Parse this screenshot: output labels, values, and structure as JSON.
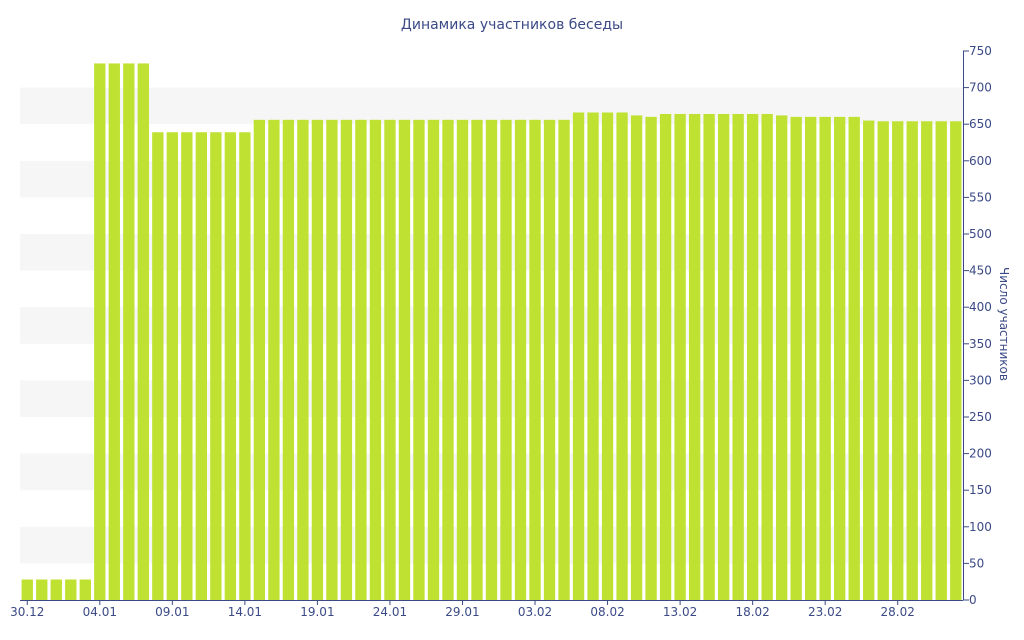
{
  "chart_data": {
    "type": "bar",
    "title": "Динамика участников беседы",
    "ylabel": "Число участников",
    "xlabel": "",
    "ylim": [
      0,
      750
    ],
    "yticks": [
      0,
      50,
      100,
      150,
      200,
      250,
      300,
      350,
      400,
      450,
      500,
      550,
      600,
      650,
      700,
      750
    ],
    "xtick_labels": [
      "30.12",
      "04.01",
      "09.01",
      "14.01",
      "19.01",
      "24.01",
      "29.01",
      "03.02",
      "08.02",
      "13.02",
      "18.02",
      "23.02",
      "28.02"
    ],
    "xtick_every": 5,
    "grid": "alternating horizontal bands",
    "colors": {
      "bar": "#bfe131",
      "text": "#3b4a86",
      "axis": "#3b4a86",
      "band": "#f6f6f6"
    },
    "categories": [
      "30.12",
      "31.12",
      "01.01",
      "02.01",
      "03.01",
      "04.01",
      "05.01",
      "06.01",
      "07.01",
      "08.01",
      "09.01",
      "10.01",
      "11.01",
      "12.01",
      "13.01",
      "14.01",
      "15.01",
      "16.01",
      "17.01",
      "18.01",
      "19.01",
      "20.01",
      "21.01",
      "22.01",
      "23.01",
      "24.01",
      "25.01",
      "26.01",
      "27.01",
      "28.01",
      "29.01",
      "30.01",
      "31.01",
      "01.02",
      "02.02",
      "03.02",
      "04.02",
      "05.02",
      "06.02",
      "07.02",
      "08.02",
      "09.02",
      "10.02",
      "11.02",
      "12.02",
      "13.02",
      "14.02",
      "15.02",
      "16.02",
      "17.02",
      "18.02",
      "19.02",
      "20.02",
      "21.02",
      "22.02",
      "23.02",
      "24.02",
      "25.02",
      "26.02",
      "27.02",
      "28.02",
      "01.03",
      "02.03",
      "03.03",
      "04.03"
    ],
    "values": [
      28,
      28,
      28,
      28,
      28,
      733,
      733,
      733,
      733,
      639,
      639,
      639,
      639,
      639,
      639,
      639,
      656,
      656,
      656,
      656,
      656,
      656,
      656,
      656,
      656,
      656,
      656,
      656,
      656,
      656,
      656,
      656,
      656,
      656,
      656,
      656,
      656,
      656,
      666,
      666,
      666,
      666,
      662,
      660,
      664,
      664,
      664,
      664,
      664,
      664,
      664,
      664,
      662,
      660,
      660,
      660,
      660,
      660,
      655,
      654,
      654,
      654,
      654,
      654,
      654
    ]
  }
}
